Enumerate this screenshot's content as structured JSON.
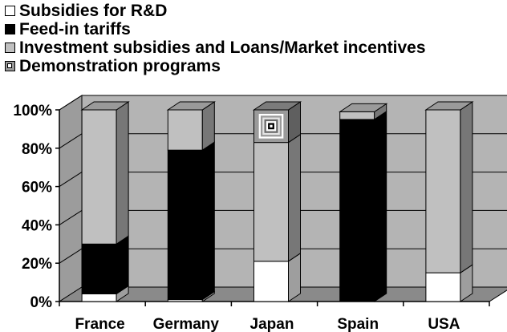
{
  "chart_data": {
    "type": "bar",
    "stacked": true,
    "three_d": true,
    "categories": [
      "France",
      "Germany",
      "Japan",
      "Spain",
      "USA"
    ],
    "series": [
      {
        "name": "Subsidies for R&D",
        "color": "#ffffff",
        "values": [
          4,
          1,
          21,
          0,
          15
        ]
      },
      {
        "name": "Feed-in tariffs",
        "color": "#000000",
        "values": [
          26,
          78,
          0,
          95,
          0
        ]
      },
      {
        "name": "Investment subsidies and Loans/Market incentives",
        "color": "#c0c0c0",
        "values": [
          70,
          21,
          62,
          4,
          85
        ]
      },
      {
        "name": "Demonstration programs",
        "color": "#9a9a9a",
        "pattern": "concentric-squares",
        "values": [
          0,
          0,
          17,
          0,
          0
        ]
      }
    ],
    "yticks": [
      "0%",
      "20%",
      "40%",
      "60%",
      "80%",
      "100%"
    ],
    "ylim": [
      0,
      100
    ],
    "legend_position": "top-left",
    "grid": true,
    "wall_color": "#b4b4b4",
    "floor_color": "#8a8a8a"
  }
}
